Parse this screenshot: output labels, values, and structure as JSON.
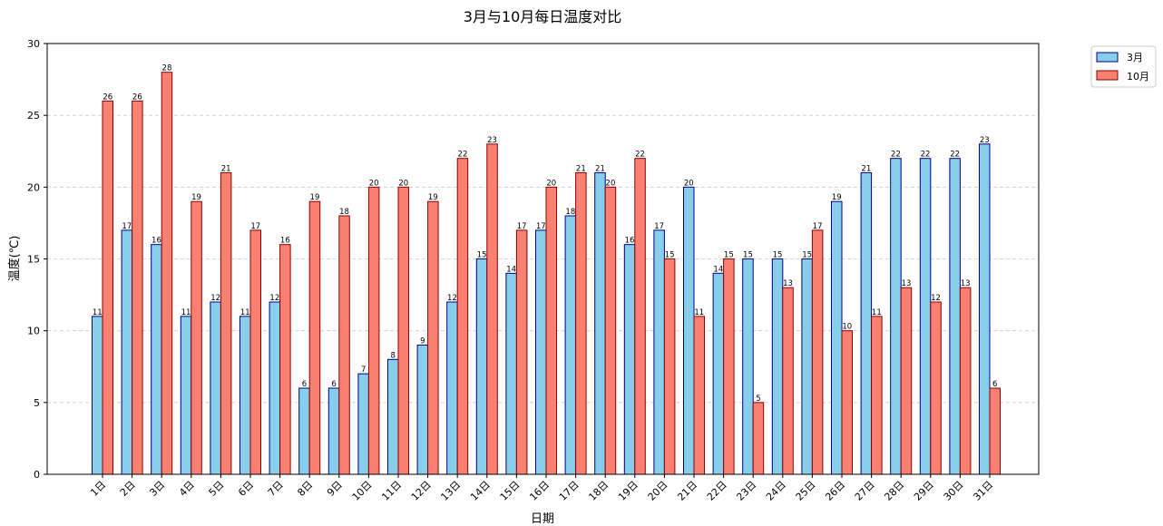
{
  "chart_data": {
    "type": "bar",
    "title": "3月与10月每日温度对比",
    "xlabel": "日期",
    "ylabel": "温度(℃)",
    "ylim": [
      0,
      30
    ],
    "yticks": [
      0,
      5,
      10,
      15,
      20,
      25,
      30
    ],
    "grid": "y-dashed",
    "legend_position": "outside-top-right",
    "categories": [
      "1日",
      "2日",
      "3日",
      "4日",
      "5日",
      "6日",
      "7日",
      "8日",
      "9日",
      "10日",
      "11日",
      "12日",
      "13日",
      "14日",
      "15日",
      "16日",
      "17日",
      "18日",
      "19日",
      "20日",
      "21日",
      "22日",
      "23日",
      "24日",
      "25日",
      "26日",
      "27日",
      "28日",
      "29日",
      "30日",
      "31日"
    ],
    "series": [
      {
        "name": "3月",
        "fill": "#87ceeb",
        "stroke": "#00008b",
        "values": [
          11,
          17,
          16,
          11,
          12,
          11,
          12,
          6,
          6,
          7,
          8,
          9,
          12,
          15,
          14,
          17,
          18,
          21,
          16,
          17,
          20,
          14,
          15,
          15,
          15,
          19,
          21,
          22,
          22,
          22,
          23
        ]
      },
      {
        "name": "10月",
        "fill": "#fa8072",
        "stroke": "#8b0000",
        "values": [
          26,
          26,
          28,
          19,
          21,
          17,
          16,
          19,
          18,
          20,
          20,
          19,
          22,
          23,
          17,
          20,
          21,
          20,
          22,
          15,
          11,
          15,
          5,
          13,
          17,
          10,
          11,
          13,
          12,
          13,
          6
        ]
      }
    ]
  }
}
